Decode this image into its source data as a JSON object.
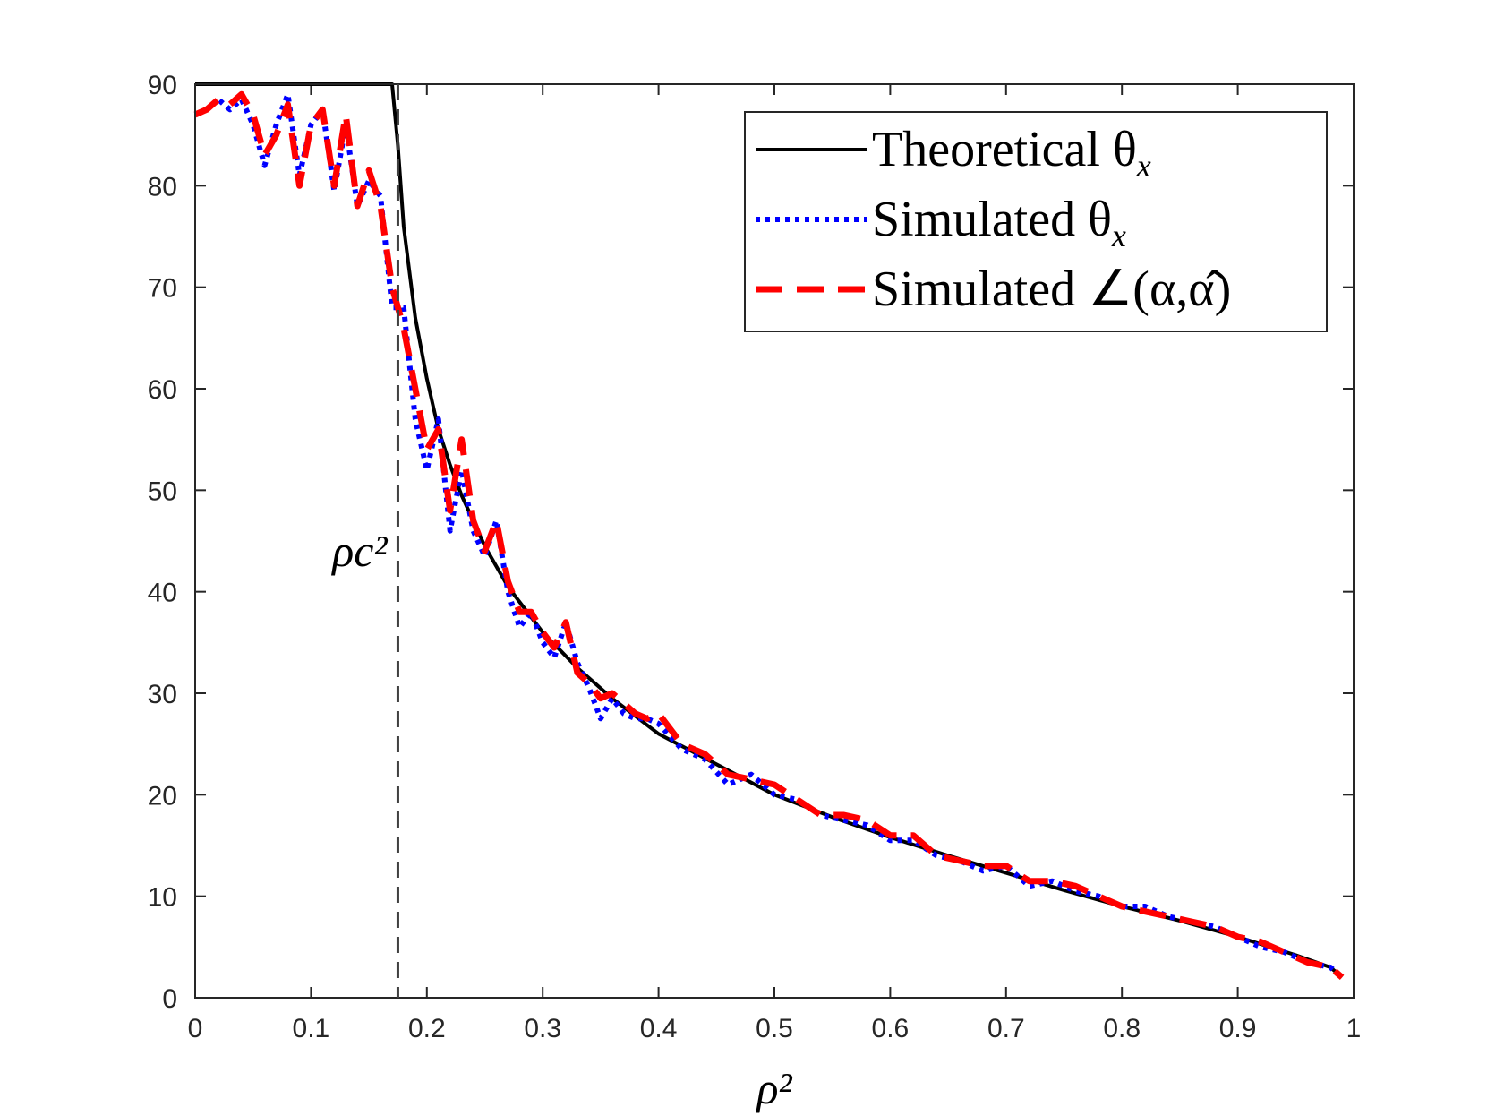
{
  "chart_data": {
    "type": "line",
    "title": "",
    "xlabel": "ρ²",
    "ylabel": "",
    "xlim": [
      0,
      1
    ],
    "ylim": [
      0,
      90
    ],
    "xticks": [
      "0",
      "0.1",
      "0.2",
      "0.3",
      "0.4",
      "0.5",
      "0.6",
      "0.7",
      "0.8",
      "0.9",
      "1"
    ],
    "yticks": [
      "0",
      "10",
      "20",
      "30",
      "40",
      "50",
      "60",
      "70",
      "80",
      "90"
    ],
    "grid": false,
    "legend_position": "top-right",
    "annotation": {
      "text": "ρc²",
      "x": 0.175,
      "description": "vertical dashed line at critical ρ²"
    },
    "series": [
      {
        "name": "Theoretical θx",
        "legend_label": "Theoretical θ",
        "legend_sub": "x",
        "color": "#000000",
        "style": "solid",
        "x": [
          0,
          0.17,
          0.175,
          0.18,
          0.19,
          0.2,
          0.21,
          0.22,
          0.23,
          0.25,
          0.27,
          0.3,
          0.33,
          0.36,
          0.4,
          0.45,
          0.5,
          0.55,
          0.6,
          0.65,
          0.7,
          0.75,
          0.8,
          0.85,
          0.9,
          0.95,
          0.98,
          0.99
        ],
        "y": [
          90,
          90,
          84,
          76,
          67,
          61,
          56,
          52.5,
          49.5,
          44.5,
          40.5,
          36,
          32.5,
          29.5,
          26,
          23,
          20,
          17.8,
          15.8,
          14,
          12.3,
          10.6,
          9,
          7.6,
          6,
          4.2,
          3,
          2
        ]
      },
      {
        "name": "Simulated θx",
        "legend_label": "Simulated θ",
        "legend_sub": "x",
        "color": "#0000ff",
        "style": "dotted",
        "x": [
          0,
          0.01,
          0.02,
          0.03,
          0.04,
          0.05,
          0.06,
          0.07,
          0.08,
          0.09,
          0.1,
          0.11,
          0.12,
          0.13,
          0.14,
          0.15,
          0.16,
          0.17,
          0.18,
          0.19,
          0.2,
          0.21,
          0.22,
          0.23,
          0.24,
          0.25,
          0.26,
          0.27,
          0.28,
          0.29,
          0.3,
          0.31,
          0.32,
          0.33,
          0.34,
          0.35,
          0.36,
          0.37,
          0.38,
          0.39,
          0.4,
          0.42,
          0.44,
          0.46,
          0.48,
          0.5,
          0.52,
          0.54,
          0.56,
          0.58,
          0.6,
          0.62,
          0.64,
          0.66,
          0.68,
          0.7,
          0.72,
          0.74,
          0.76,
          0.78,
          0.8,
          0.82,
          0.84,
          0.86,
          0.88,
          0.9,
          0.92,
          0.94,
          0.96,
          0.98,
          0.99
        ],
        "y": [
          87,
          87.5,
          88.5,
          87.5,
          88.5,
          86,
          82,
          86,
          89,
          81,
          86,
          87.5,
          79.5,
          86,
          78,
          80.5,
          79,
          68,
          68,
          57,
          52,
          57,
          46,
          52,
          46,
          43.5,
          47,
          40,
          36.5,
          38,
          35,
          33.5,
          37,
          33,
          30.5,
          27.5,
          29.5,
          28,
          27.5,
          27.5,
          27,
          24.5,
          23.5,
          21,
          22,
          20,
          19.5,
          18,
          17.5,
          17,
          15.5,
          15.5,
          14,
          13.5,
          12.5,
          13,
          11,
          11.5,
          10.5,
          10,
          9,
          9,
          8,
          7.5,
          7,
          6,
          5,
          4.5,
          3.5,
          3,
          2
        ]
      },
      {
        "name": "Simulated ∠(α, α̂)",
        "legend_label": "Simulated ∠(α,α̂)",
        "legend_sub": "",
        "color": "#ff0000",
        "style": "dashed",
        "x": [
          0,
          0.01,
          0.02,
          0.03,
          0.04,
          0.05,
          0.06,
          0.07,
          0.08,
          0.09,
          0.1,
          0.11,
          0.12,
          0.13,
          0.14,
          0.15,
          0.16,
          0.17,
          0.18,
          0.19,
          0.2,
          0.21,
          0.22,
          0.23,
          0.24,
          0.25,
          0.26,
          0.27,
          0.28,
          0.29,
          0.3,
          0.31,
          0.32,
          0.33,
          0.34,
          0.35,
          0.36,
          0.37,
          0.38,
          0.39,
          0.4,
          0.42,
          0.44,
          0.46,
          0.48,
          0.5,
          0.52,
          0.54,
          0.56,
          0.58,
          0.6,
          0.62,
          0.64,
          0.66,
          0.68,
          0.7,
          0.72,
          0.74,
          0.76,
          0.78,
          0.8,
          0.82,
          0.84,
          0.86,
          0.88,
          0.9,
          0.92,
          0.94,
          0.96,
          0.98,
          0.99
        ],
        "y": [
          87,
          87.5,
          88.5,
          88,
          89,
          87,
          83,
          85,
          88,
          80,
          86,
          87.5,
          80,
          87,
          78,
          81.5,
          78,
          70,
          66,
          60,
          54,
          56,
          48,
          55,
          47,
          44,
          47,
          41,
          38,
          38,
          36,
          34.5,
          37,
          32,
          31,
          29.5,
          30,
          29,
          28,
          27.5,
          28,
          25,
          24,
          22,
          21.5,
          21,
          19.5,
          18,
          18,
          17.5,
          16,
          16,
          14,
          13.5,
          13,
          13,
          11.5,
          11.5,
          11,
          10,
          9,
          8.5,
          8,
          7.5,
          7,
          6,
          5.5,
          4.5,
          3.5,
          3,
          2
        ]
      }
    ]
  }
}
